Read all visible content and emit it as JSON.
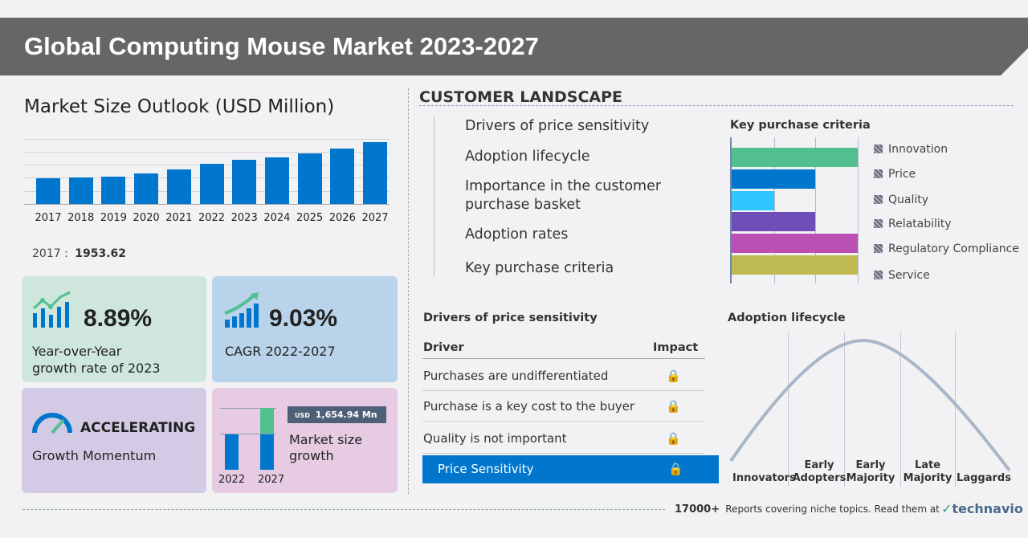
{
  "title": "Global Computing Mouse Market 2023-2027",
  "market_size": {
    "heading": "Market Size Outlook (USD Million)",
    "base_label": "2017 :",
    "base_value": "1953.62"
  },
  "chart_data": {
    "type": "bar",
    "title": "Market Size Outlook (USD Million)",
    "categories": [
      "2017",
      "2018",
      "2019",
      "2020",
      "2021",
      "2022",
      "2023",
      "2024",
      "2025",
      "2026",
      "2027"
    ],
    "values": [
      1953.62,
      2020,
      2080,
      2330,
      2640,
      3059,
      3331,
      3560,
      3870,
      4230,
      4714
    ],
    "ylim": [
      0,
      5000
    ],
    "grid": true,
    "color": "#0077cc"
  },
  "stats": {
    "yoy": {
      "value": "8.89%",
      "label1": "Year-over-Year",
      "label2": "growth rate of 2023",
      "bg": "#cfe6dc"
    },
    "cagr": {
      "value": "9.03%",
      "label": "CAGR 2022-2027",
      "bg": "#b9d4ea"
    },
    "momentum": {
      "value": "ACCELERATING",
      "label": "Growth Momentum",
      "bg": "#d3cbe6"
    },
    "growth": {
      "currency": "USD",
      "value": "1,654.94 Mn",
      "label1": "Market size",
      "label2": "growth",
      "year_a": "2022",
      "year_b": "2027",
      "bg": "#e6cbe2"
    }
  },
  "customer": {
    "heading": "CUSTOMER LANDSCAPE",
    "topics": [
      "Drivers of price sensitivity",
      "Adoption lifecycle",
      "Importance in the customer",
      "purchase basket",
      "Adoption rates",
      "Key purchase criteria"
    ]
  },
  "kpc": {
    "heading": "Key purchase criteria",
    "items": [
      {
        "label": "Innovation",
        "level": 3,
        "color": "#52bf91"
      },
      {
        "label": "Price",
        "level": 2,
        "color": "#0077cc"
      },
      {
        "label": "Quality",
        "level": 1,
        "color": "#2ec6ff"
      },
      {
        "label": "Relatability",
        "level": 2,
        "color": "#6e4fb8"
      },
      {
        "label": "Regulatory Compliance",
        "level": 3,
        "color": "#bb4fb4"
      },
      {
        "label": "Service",
        "level": 3,
        "color": "#bfba52"
      }
    ]
  },
  "drivers": {
    "heading": "Drivers of price sensitivity",
    "col_driver": "Driver",
    "col_impact": "Impact",
    "rows": [
      "Purchases are undifferentiated",
      "Purchase is a key cost to the buyer",
      "Quality is not important"
    ],
    "highlight": "Price Sensitivity",
    "highlight_color": "#0077cc"
  },
  "adoption": {
    "heading": "Adoption lifecycle",
    "stages": [
      [
        "Innovators",
        ""
      ],
      [
        "Early",
        "Adopters"
      ],
      [
        "Early",
        "Majority"
      ],
      [
        "Late",
        "Majority"
      ],
      [
        "Laggards",
        ""
      ]
    ]
  },
  "footer": {
    "count": "17000+",
    "text": "Reports covering niche topics. Read them at",
    "brand": "technavio"
  }
}
